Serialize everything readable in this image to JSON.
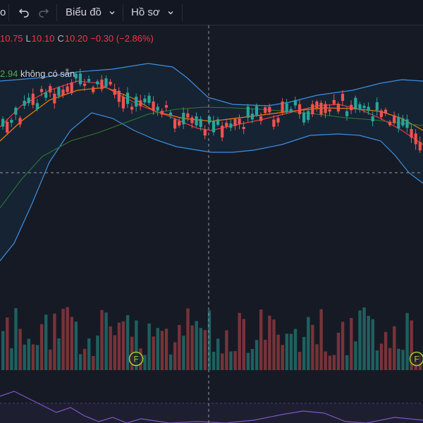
{
  "toolbar": {
    "clipped_left": "o",
    "undo_icon": "undo-arrow-icon",
    "redo_icon": "redo-arrow-icon",
    "chart_menu_label": "Biểu đồ",
    "profile_menu_label": "Hồ sơ"
  },
  "legend": {
    "high_value": "10.75",
    "low_label": "L",
    "low_value": "10.10",
    "close_label": "C",
    "close_value": "10.20",
    "change": "−0.30 (−2.86%)"
  },
  "indicator": {
    "value": "2.94",
    "unavailable_text": "không có sẵn"
  },
  "volume_markers": [
    {
      "label": "F"
    },
    {
      "label": "F"
    }
  ],
  "colors": {
    "background": "#161a25",
    "up": "#26a69a",
    "down": "#ef5350",
    "bollinger": "#3d8fe0",
    "ma_short": "#f23645",
    "ma_mid": "#f57c00",
    "ma_long": "#2e7d32",
    "rsi": "#7e57c2",
    "marker": "#9ccc3c"
  }
}
